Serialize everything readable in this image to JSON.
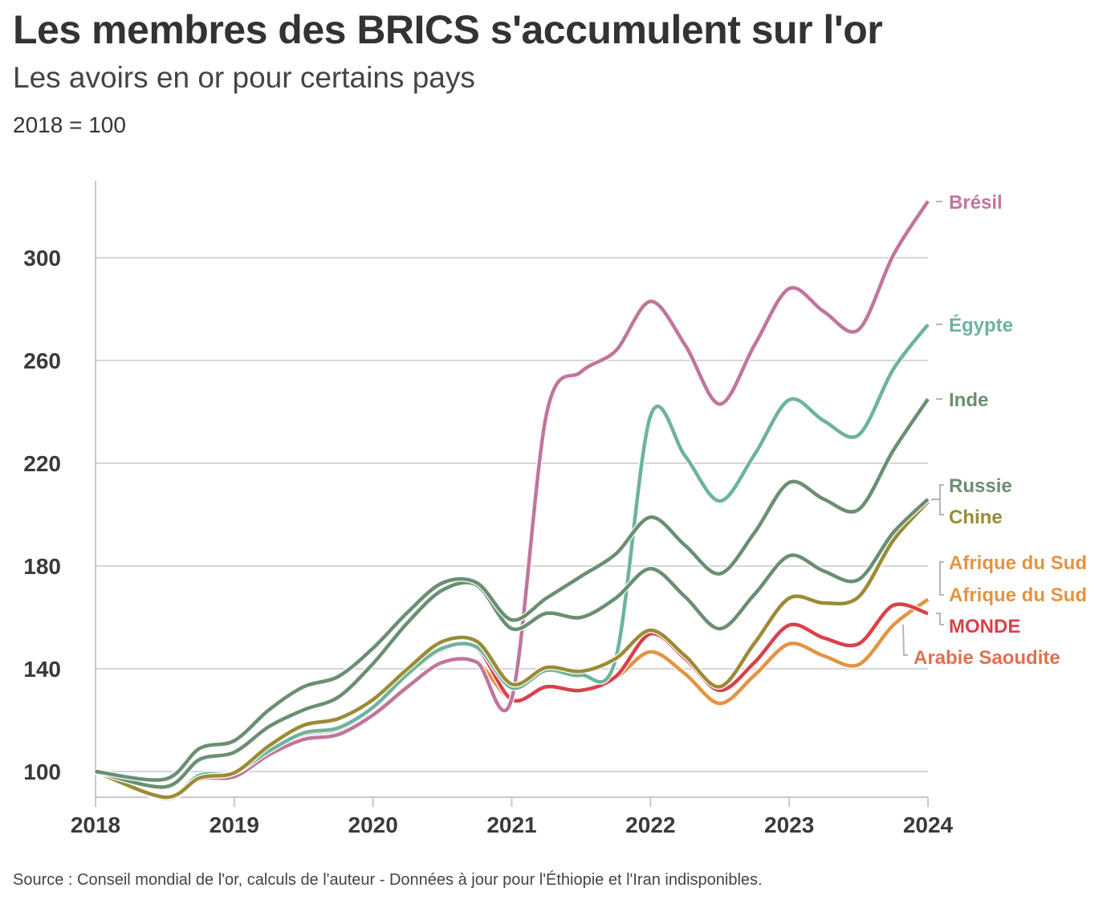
{
  "title": "Les membres des BRICS s'accumulent sur l'or",
  "subtitle": "Les avoirs en or pour certains pays",
  "unit_note": "2018 = 100",
  "source": "Source : Conseil mondial de l'or, calculs de l'auteur - Données à jour pour l'Éthiopie et l'Iran indisponibles.",
  "chart_data": {
    "type": "line",
    "title": "Les membres des BRICS s'accumulent sur l'or",
    "subtitle": "Les avoirs en or pour certains pays",
    "ylabel": "2018 = 100",
    "xlim": [
      2018,
      2024
    ],
    "ylim": [
      90,
      330
    ],
    "x_ticks": [
      "2018",
      "2019",
      "2020",
      "2021",
      "2022",
      "2023",
      "2024"
    ],
    "y_ticks": [
      "100",
      "140",
      "180",
      "220",
      "260",
      "300"
    ],
    "grid": "horizontal",
    "legend": "direct labels at right end",
    "x": [
      2018,
      2018.5,
      2018.75,
      2019,
      2019.25,
      2019.5,
      2019.75,
      2020,
      2020.25,
      2020.5,
      2020.75,
      2021,
      2021.25,
      2021.5,
      2021.75,
      2022,
      2022.25,
      2022.5,
      2022.75,
      2023,
      2023.25,
      2023.5,
      2023.75,
      2024
    ],
    "series": [
      {
        "name": "Arabie Saoudite",
        "color": "#e0704f",
        "values": [
          100,
          89.5,
          97,
          98,
          106.5,
          112.5,
          114.4,
          122,
          133,
          142.5,
          142.5,
          128,
          133,
          131.6,
          136.5,
          146.6,
          138,
          126.5,
          137.5,
          149.7,
          145,
          141.6,
          157,
          167
        ]
      },
      {
        "name": "Afrique du Sud",
        "color": "#e39442",
        "values": [
          100,
          89.5,
          97,
          98,
          106.5,
          112.5,
          114.4,
          122,
          133,
          142.5,
          142.5,
          128,
          133,
          131.6,
          136.5,
          146.6,
          138,
          126.5,
          137.5,
          149.7,
          145,
          141.6,
          157,
          167
        ]
      },
      {
        "name": "MONDE",
        "color": "#d9414a",
        "values": [
          100,
          90,
          98,
          99,
          107.5,
          114.5,
          116.5,
          124.5,
          137.5,
          147.5,
          148,
          128,
          133,
          131.6,
          137,
          153.6,
          144,
          131.6,
          142.5,
          157,
          152,
          149.7,
          164.7,
          161.5
        ]
      },
      {
        "name": "Brésil",
        "color": "#c0769b",
        "values": [
          100,
          89.5,
          97,
          98,
          106.5,
          112.5,
          114.4,
          122,
          133,
          142.5,
          142.5,
          128.4,
          239,
          255.6,
          263.8,
          283,
          266,
          243,
          266,
          288,
          279,
          272,
          301,
          322
        ]
      },
      {
        "name": "Égypte",
        "color": "#6db39e",
        "values": [
          100,
          90,
          98.5,
          99.5,
          108,
          115,
          117,
          125,
          138,
          148,
          148.4,
          132.6,
          139.4,
          137.5,
          144,
          238.4,
          222.8,
          205.3,
          223.4,
          244.7,
          236.5,
          231,
          256.6,
          274
        ]
      },
      {
        "name": "Chine",
        "color": "#9a8c35",
        "values": [
          100,
          90,
          97.5,
          99.5,
          110,
          118,
          120.6,
          128,
          140,
          150.6,
          150.6,
          134,
          140.5,
          139,
          144,
          155,
          145,
          133,
          150,
          167.5,
          165.6,
          168,
          190,
          205
        ]
      },
      {
        "name": "Russie",
        "color": "#6a8f72",
        "values": [
          100,
          94,
          104.7,
          107.5,
          117.5,
          124,
          129,
          142,
          158,
          170.6,
          172.5,
          155.6,
          161.6,
          160,
          167.5,
          179,
          168,
          155.6,
          169,
          184,
          178,
          174.7,
          193,
          206
        ]
      },
      {
        "name": "Inde",
        "color": "#6a8f72",
        "values": [
          100,
          97,
          109,
          112,
          124,
          133,
          137,
          148,
          162,
          173.4,
          173.4,
          159,
          167.5,
          176,
          184.7,
          199,
          188,
          177,
          193,
          212.5,
          206,
          202,
          225,
          245
        ]
      }
    ],
    "end_labels": [
      {
        "text": "Brésil",
        "color": "#c0769b"
      },
      {
        "text": "Égypte",
        "color": "#6db39e"
      },
      {
        "text": "Inde",
        "color": "#6a8f72"
      },
      {
        "text": "Russie",
        "color": "#6a8f72"
      },
      {
        "text": "Chine",
        "color": "#9a8c35"
      },
      {
        "text": "Afrique du Sud",
        "color": "#e39442"
      },
      {
        "text": "Afrique du Sud",
        "color": "#e39442"
      },
      {
        "text": "MONDE",
        "color": "#d9414a"
      },
      {
        "text": "Arabie Saoudite",
        "color": "#e0704f"
      }
    ]
  }
}
